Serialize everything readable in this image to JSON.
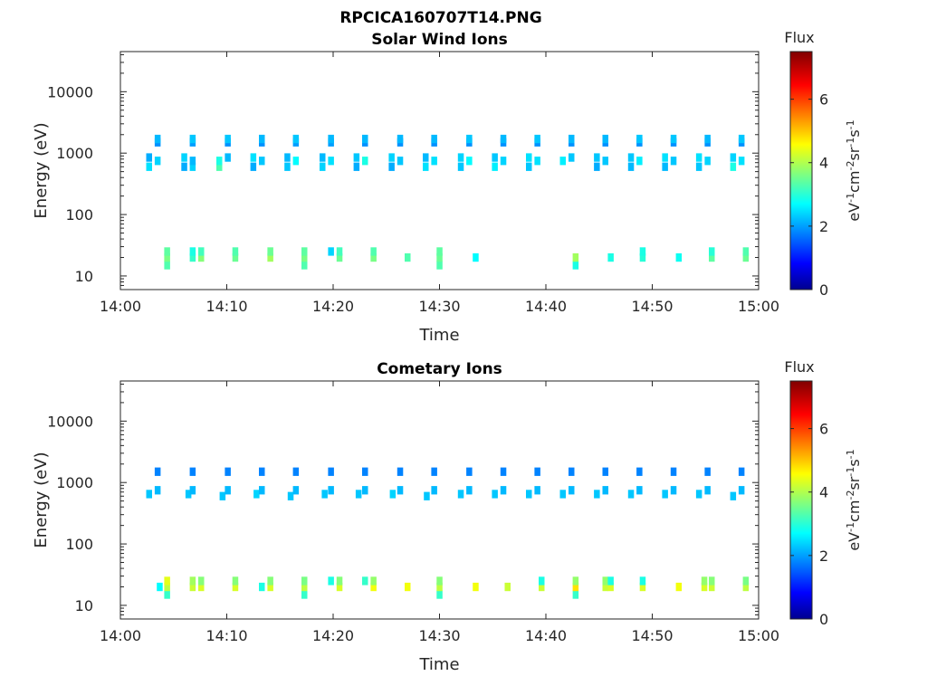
{
  "figure": {
    "filename_title": "RPCICA160707T14.PNG"
  },
  "chart_data": [
    {
      "type": "heatmap",
      "title": "Solar Wind Ions",
      "xlabel": "Time",
      "ylabel": "Energy (eV)",
      "x_ticks": [
        "14:00",
        "14:10",
        "14:20",
        "14:30",
        "14:40",
        "14:50",
        "15:00"
      ],
      "x_range_minutes": [
        0,
        60
      ],
      "y_scale": "log",
      "y_ticks": [
        "10",
        "100",
        "1000",
        "10000"
      ],
      "ylim": [
        6,
        45000
      ],
      "colorbar": {
        "title": "Flux",
        "label": "eV-1cm-2sr-1s-1",
        "ticks": [
          "0",
          "2",
          "4",
          "6"
        ],
        "range": [
          0,
          7.5
        ],
        "colormap": "jet"
      },
      "cells": [
        {
          "t": 2.7,
          "e": 600,
          "v": 2.6
        },
        {
          "t": 2.7,
          "e": 850,
          "v": 2.2
        },
        {
          "t": 3.5,
          "e": 750,
          "v": 2.5
        },
        {
          "t": 3.5,
          "e": 1500,
          "v": 2.0
        },
        {
          "t": 3.5,
          "e": 1700,
          "v": 2.3
        },
        {
          "t": 4.4,
          "e": 15,
          "v": 3.4
        },
        {
          "t": 4.4,
          "e": 20,
          "v": 3.7
        },
        {
          "t": 4.4,
          "e": 25,
          "v": 3.5
        },
        {
          "t": 6.0,
          "e": 600,
          "v": 2.2
        },
        {
          "t": 6.0,
          "e": 850,
          "v": 2.5
        },
        {
          "t": 6.8,
          "e": 600,
          "v": 2.5
        },
        {
          "t": 6.8,
          "e": 750,
          "v": 2.3
        },
        {
          "t": 6.8,
          "e": 1500,
          "v": 2.1
        },
        {
          "t": 6.8,
          "e": 1700,
          "v": 2.4
        },
        {
          "t": 6.8,
          "e": 20,
          "v": 3.2
        },
        {
          "t": 6.8,
          "e": 25,
          "v": 3.0
        },
        {
          "t": 7.6,
          "e": 20,
          "v": 3.8
        },
        {
          "t": 7.6,
          "e": 25,
          "v": 3.3
        },
        {
          "t": 9.3,
          "e": 600,
          "v": 3.4
        },
        {
          "t": 9.3,
          "e": 750,
          "v": 3.0
        },
        {
          "t": 10.1,
          "e": 850,
          "v": 2.3
        },
        {
          "t": 10.1,
          "e": 1500,
          "v": 2.0
        },
        {
          "t": 10.1,
          "e": 1700,
          "v": 2.4
        },
        {
          "t": 10.8,
          "e": 20,
          "v": 3.6
        },
        {
          "t": 10.8,
          "e": 25,
          "v": 3.4
        },
        {
          "t": 12.5,
          "e": 600,
          "v": 2.2
        },
        {
          "t": 12.5,
          "e": 850,
          "v": 2.6
        },
        {
          "t": 13.3,
          "e": 750,
          "v": 2.4
        },
        {
          "t": 13.3,
          "e": 1500,
          "v": 2.0
        },
        {
          "t": 13.3,
          "e": 1700,
          "v": 2.3
        },
        {
          "t": 14.1,
          "e": 20,
          "v": 4.0
        },
        {
          "t": 14.1,
          "e": 25,
          "v": 3.6
        },
        {
          "t": 15.7,
          "e": 600,
          "v": 2.4
        },
        {
          "t": 15.7,
          "e": 850,
          "v": 2.3
        },
        {
          "t": 16.5,
          "e": 750,
          "v": 2.8
        },
        {
          "t": 16.5,
          "e": 1500,
          "v": 2.1
        },
        {
          "t": 16.5,
          "e": 1700,
          "v": 2.4
        },
        {
          "t": 17.3,
          "e": 15,
          "v": 3.4
        },
        {
          "t": 17.3,
          "e": 20,
          "v": 3.7
        },
        {
          "t": 17.3,
          "e": 25,
          "v": 3.5
        },
        {
          "t": 19.0,
          "e": 600,
          "v": 2.5
        },
        {
          "t": 19.0,
          "e": 850,
          "v": 2.3
        },
        {
          "t": 19.8,
          "e": 750,
          "v": 2.6
        },
        {
          "t": 19.8,
          "e": 1500,
          "v": 2.1
        },
        {
          "t": 19.8,
          "e": 1700,
          "v": 2.3
        },
        {
          "t": 19.8,
          "e": 25,
          "v": 2.5
        },
        {
          "t": 20.6,
          "e": 20,
          "v": 3.6
        },
        {
          "t": 20.6,
          "e": 25,
          "v": 3.3
        },
        {
          "t": 22.2,
          "e": 600,
          "v": 2.2
        },
        {
          "t": 22.2,
          "e": 850,
          "v": 2.4
        },
        {
          "t": 23.0,
          "e": 750,
          "v": 3.0
        },
        {
          "t": 23.0,
          "e": 1500,
          "v": 2.0
        },
        {
          "t": 23.0,
          "e": 1700,
          "v": 2.3
        },
        {
          "t": 23.8,
          "e": 20,
          "v": 3.7
        },
        {
          "t": 23.8,
          "e": 25,
          "v": 3.4
        },
        {
          "t": 25.5,
          "e": 600,
          "v": 2.2
        },
        {
          "t": 25.5,
          "e": 850,
          "v": 2.5
        },
        {
          "t": 26.3,
          "e": 750,
          "v": 2.4
        },
        {
          "t": 26.3,
          "e": 1500,
          "v": 2.0
        },
        {
          "t": 26.3,
          "e": 1700,
          "v": 2.3
        },
        {
          "t": 27.0,
          "e": 20,
          "v": 3.4
        },
        {
          "t": 28.7,
          "e": 600,
          "v": 2.6
        },
        {
          "t": 28.7,
          "e": 850,
          "v": 2.3
        },
        {
          "t": 29.5,
          "e": 750,
          "v": 2.6
        },
        {
          "t": 29.5,
          "e": 1500,
          "v": 2.0
        },
        {
          "t": 29.5,
          "e": 1700,
          "v": 2.3
        },
        {
          "t": 30.0,
          "e": 15,
          "v": 3.4
        },
        {
          "t": 30.0,
          "e": 20,
          "v": 3.6
        },
        {
          "t": 30.0,
          "e": 25,
          "v": 3.5
        },
        {
          "t": 32.0,
          "e": 600,
          "v": 2.4
        },
        {
          "t": 32.0,
          "e": 850,
          "v": 2.5
        },
        {
          "t": 32.8,
          "e": 750,
          "v": 2.8
        },
        {
          "t": 32.8,
          "e": 1500,
          "v": 2.0
        },
        {
          "t": 32.8,
          "e": 1700,
          "v": 2.4
        },
        {
          "t": 33.4,
          "e": 20,
          "v": 2.8
        },
        {
          "t": 35.2,
          "e": 600,
          "v": 2.7
        },
        {
          "t": 35.2,
          "e": 850,
          "v": 2.4
        },
        {
          "t": 36.0,
          "e": 750,
          "v": 2.5
        },
        {
          "t": 36.0,
          "e": 1500,
          "v": 2.0
        },
        {
          "t": 36.0,
          "e": 1700,
          "v": 2.3
        },
        {
          "t": 38.4,
          "e": 600,
          "v": 2.4
        },
        {
          "t": 38.4,
          "e": 850,
          "v": 2.6
        },
        {
          "t": 39.2,
          "e": 750,
          "v": 2.6
        },
        {
          "t": 39.2,
          "e": 1500,
          "v": 2.0
        },
        {
          "t": 39.2,
          "e": 1700,
          "v": 2.4
        },
        {
          "t": 41.6,
          "e": 750,
          "v": 2.7
        },
        {
          "t": 42.4,
          "e": 850,
          "v": 2.4
        },
        {
          "t": 42.4,
          "e": 1500,
          "v": 2.0
        },
        {
          "t": 42.4,
          "e": 1700,
          "v": 2.3
        },
        {
          "t": 42.8,
          "e": 15,
          "v": 3.0
        },
        {
          "t": 42.8,
          "e": 20,
          "v": 4.0
        },
        {
          "t": 44.8,
          "e": 600,
          "v": 2.2
        },
        {
          "t": 44.8,
          "e": 850,
          "v": 2.4
        },
        {
          "t": 45.6,
          "e": 750,
          "v": 2.4
        },
        {
          "t": 45.6,
          "e": 1500,
          "v": 2.0
        },
        {
          "t": 45.6,
          "e": 1700,
          "v": 2.3
        },
        {
          "t": 46.1,
          "e": 20,
          "v": 3.0
        },
        {
          "t": 48.0,
          "e": 600,
          "v": 2.3
        },
        {
          "t": 48.0,
          "e": 850,
          "v": 2.4
        },
        {
          "t": 48.8,
          "e": 750,
          "v": 2.7
        },
        {
          "t": 48.8,
          "e": 1500,
          "v": 2.0
        },
        {
          "t": 48.8,
          "e": 1700,
          "v": 2.4
        },
        {
          "t": 49.1,
          "e": 20,
          "v": 3.1
        },
        {
          "t": 49.1,
          "e": 25,
          "v": 3.0
        },
        {
          "t": 51.2,
          "e": 600,
          "v": 2.3
        },
        {
          "t": 51.2,
          "e": 850,
          "v": 2.6
        },
        {
          "t": 52.0,
          "e": 750,
          "v": 2.4
        },
        {
          "t": 52.0,
          "e": 1500,
          "v": 2.0
        },
        {
          "t": 52.0,
          "e": 1700,
          "v": 2.4
        },
        {
          "t": 52.5,
          "e": 20,
          "v": 2.9
        },
        {
          "t": 54.4,
          "e": 600,
          "v": 2.4
        },
        {
          "t": 54.4,
          "e": 850,
          "v": 2.6
        },
        {
          "t": 55.2,
          "e": 750,
          "v": 2.5
        },
        {
          "t": 55.2,
          "e": 1500,
          "v": 2.0
        },
        {
          "t": 55.2,
          "e": 1700,
          "v": 2.3
        },
        {
          "t": 55.6,
          "e": 20,
          "v": 3.5
        },
        {
          "t": 55.6,
          "e": 25,
          "v": 3.1
        },
        {
          "t": 57.6,
          "e": 600,
          "v": 3.0
        },
        {
          "t": 57.6,
          "e": 850,
          "v": 2.5
        },
        {
          "t": 58.4,
          "e": 750,
          "v": 2.6
        },
        {
          "t": 58.4,
          "e": 1500,
          "v": 2.0
        },
        {
          "t": 58.4,
          "e": 1700,
          "v": 2.4
        },
        {
          "t": 58.8,
          "e": 20,
          "v": 3.6
        },
        {
          "t": 58.8,
          "e": 25,
          "v": 3.4
        }
      ]
    },
    {
      "type": "heatmap",
      "title": "Cometary Ions",
      "xlabel": "Time",
      "ylabel": "Energy (eV)",
      "x_ticks": [
        "14:00",
        "14:10",
        "14:20",
        "14:30",
        "14:40",
        "14:50",
        "15:00"
      ],
      "x_range_minutes": [
        0,
        60
      ],
      "y_scale": "log",
      "y_ticks": [
        "10",
        "100",
        "1000",
        "10000"
      ],
      "ylim": [
        6,
        45000
      ],
      "colorbar": {
        "title": "Flux",
        "label": "eV-1cm-2sr-1s-1",
        "ticks": [
          "0",
          "2",
          "4",
          "6"
        ],
        "range": [
          0,
          7.5
        ],
        "colormap": "jet"
      },
      "cells": [
        {
          "t": 2.7,
          "e": 650,
          "v": 2.4
        },
        {
          "t": 3.5,
          "e": 750,
          "v": 2.3
        },
        {
          "t": 3.5,
          "e": 1500,
          "v": 1.9
        },
        {
          "t": 3.7,
          "e": 20,
          "v": 2.8
        },
        {
          "t": 4.4,
          "e": 15,
          "v": 3.2
        },
        {
          "t": 4.4,
          "e": 20,
          "v": 4.2
        },
        {
          "t": 4.4,
          "e": 25,
          "v": 4.5
        },
        {
          "t": 6.4,
          "e": 650,
          "v": 2.4
        },
        {
          "t": 6.8,
          "e": 750,
          "v": 2.3
        },
        {
          "t": 6.8,
          "e": 1500,
          "v": 1.9
        },
        {
          "t": 6.8,
          "e": 20,
          "v": 4.3
        },
        {
          "t": 6.8,
          "e": 25,
          "v": 4.0
        },
        {
          "t": 7.6,
          "e": 20,
          "v": 4.4
        },
        {
          "t": 7.6,
          "e": 25,
          "v": 3.8
        },
        {
          "t": 9.6,
          "e": 600,
          "v": 2.4
        },
        {
          "t": 10.1,
          "e": 750,
          "v": 2.3
        },
        {
          "t": 10.1,
          "e": 1500,
          "v": 1.9
        },
        {
          "t": 10.8,
          "e": 20,
          "v": 4.4
        },
        {
          "t": 10.8,
          "e": 25,
          "v": 3.8
        },
        {
          "t": 12.8,
          "e": 650,
          "v": 2.5
        },
        {
          "t": 13.3,
          "e": 750,
          "v": 2.3
        },
        {
          "t": 13.3,
          "e": 1500,
          "v": 1.9
        },
        {
          "t": 13.3,
          "e": 20,
          "v": 3.0
        },
        {
          "t": 14.1,
          "e": 20,
          "v": 4.4
        },
        {
          "t": 14.1,
          "e": 25,
          "v": 3.8
        },
        {
          "t": 16.0,
          "e": 600,
          "v": 2.4
        },
        {
          "t": 16.5,
          "e": 750,
          "v": 2.3
        },
        {
          "t": 16.5,
          "e": 1500,
          "v": 1.9
        },
        {
          "t": 17.3,
          "e": 15,
          "v": 3.2
        },
        {
          "t": 17.3,
          "e": 20,
          "v": 4.2
        },
        {
          "t": 17.3,
          "e": 25,
          "v": 3.7
        },
        {
          "t": 19.2,
          "e": 650,
          "v": 2.4
        },
        {
          "t": 19.8,
          "e": 750,
          "v": 2.3
        },
        {
          "t": 19.8,
          "e": 1500,
          "v": 1.9
        },
        {
          "t": 19.8,
          "e": 25,
          "v": 3.0
        },
        {
          "t": 20.6,
          "e": 20,
          "v": 4.4
        },
        {
          "t": 20.6,
          "e": 25,
          "v": 3.8
        },
        {
          "t": 22.4,
          "e": 650,
          "v": 2.4
        },
        {
          "t": 23.0,
          "e": 750,
          "v": 2.3
        },
        {
          "t": 23.0,
          "e": 1500,
          "v": 1.9
        },
        {
          "t": 23.0,
          "e": 25,
          "v": 3.2
        },
        {
          "t": 23.8,
          "e": 20,
          "v": 4.6
        },
        {
          "t": 23.8,
          "e": 25,
          "v": 3.9
        },
        {
          "t": 25.6,
          "e": 650,
          "v": 2.5
        },
        {
          "t": 26.3,
          "e": 750,
          "v": 2.3
        },
        {
          "t": 26.3,
          "e": 1500,
          "v": 1.9
        },
        {
          "t": 27.0,
          "e": 20,
          "v": 4.6
        },
        {
          "t": 28.8,
          "e": 600,
          "v": 2.4
        },
        {
          "t": 29.5,
          "e": 750,
          "v": 2.3
        },
        {
          "t": 29.5,
          "e": 1500,
          "v": 1.9
        },
        {
          "t": 30.0,
          "e": 15,
          "v": 3.2
        },
        {
          "t": 30.0,
          "e": 20,
          "v": 4.2
        },
        {
          "t": 30.0,
          "e": 25,
          "v": 3.8
        },
        {
          "t": 32.0,
          "e": 650,
          "v": 2.4
        },
        {
          "t": 32.8,
          "e": 750,
          "v": 2.3
        },
        {
          "t": 32.8,
          "e": 1500,
          "v": 1.9
        },
        {
          "t": 33.4,
          "e": 20,
          "v": 4.6
        },
        {
          "t": 35.2,
          "e": 650,
          "v": 2.4
        },
        {
          "t": 36.0,
          "e": 750,
          "v": 2.3
        },
        {
          "t": 36.0,
          "e": 1500,
          "v": 1.9
        },
        {
          "t": 36.4,
          "e": 20,
          "v": 4.3
        },
        {
          "t": 38.4,
          "e": 650,
          "v": 2.4
        },
        {
          "t": 39.2,
          "e": 750,
          "v": 2.3
        },
        {
          "t": 39.2,
          "e": 1500,
          "v": 1.9
        },
        {
          "t": 39.6,
          "e": 20,
          "v": 4.3
        },
        {
          "t": 39.6,
          "e": 25,
          "v": 3.0
        },
        {
          "t": 41.6,
          "e": 650,
          "v": 2.4
        },
        {
          "t": 42.4,
          "e": 750,
          "v": 2.3
        },
        {
          "t": 42.4,
          "e": 1500,
          "v": 1.9
        },
        {
          "t": 42.8,
          "e": 15,
          "v": 3.2
        },
        {
          "t": 42.8,
          "e": 20,
          "v": 4.9
        },
        {
          "t": 42.8,
          "e": 25,
          "v": 3.9
        },
        {
          "t": 44.8,
          "e": 650,
          "v": 2.4
        },
        {
          "t": 45.6,
          "e": 750,
          "v": 2.3
        },
        {
          "t": 45.6,
          "e": 1500,
          "v": 1.9
        },
        {
          "t": 45.6,
          "e": 20,
          "v": 4.3
        },
        {
          "t": 45.6,
          "e": 25,
          "v": 3.9
        },
        {
          "t": 46.1,
          "e": 20,
          "v": 4.4
        },
        {
          "t": 46.1,
          "e": 25,
          "v": 3.0
        },
        {
          "t": 48.0,
          "e": 650,
          "v": 2.4
        },
        {
          "t": 48.8,
          "e": 750,
          "v": 2.3
        },
        {
          "t": 48.8,
          "e": 1500,
          "v": 1.9
        },
        {
          "t": 49.1,
          "e": 20,
          "v": 4.4
        },
        {
          "t": 49.1,
          "e": 25,
          "v": 3.0
        },
        {
          "t": 51.2,
          "e": 650,
          "v": 2.4
        },
        {
          "t": 52.0,
          "e": 750,
          "v": 2.3
        },
        {
          "t": 52.0,
          "e": 1500,
          "v": 1.9
        },
        {
          "t": 52.5,
          "e": 20,
          "v": 4.6
        },
        {
          "t": 54.4,
          "e": 650,
          "v": 2.4
        },
        {
          "t": 55.2,
          "e": 750,
          "v": 2.3
        },
        {
          "t": 55.2,
          "e": 1500,
          "v": 1.9
        },
        {
          "t": 54.9,
          "e": 20,
          "v": 4.4
        },
        {
          "t": 54.9,
          "e": 25,
          "v": 3.9
        },
        {
          "t": 55.6,
          "e": 20,
          "v": 4.3
        },
        {
          "t": 55.6,
          "e": 25,
          "v": 3.8
        },
        {
          "t": 57.6,
          "e": 600,
          "v": 2.4
        },
        {
          "t": 58.4,
          "e": 750,
          "v": 2.3
        },
        {
          "t": 58.4,
          "e": 1500,
          "v": 1.9
        },
        {
          "t": 58.8,
          "e": 20,
          "v": 4.2
        },
        {
          "t": 58.8,
          "e": 25,
          "v": 3.7
        }
      ]
    }
  ]
}
